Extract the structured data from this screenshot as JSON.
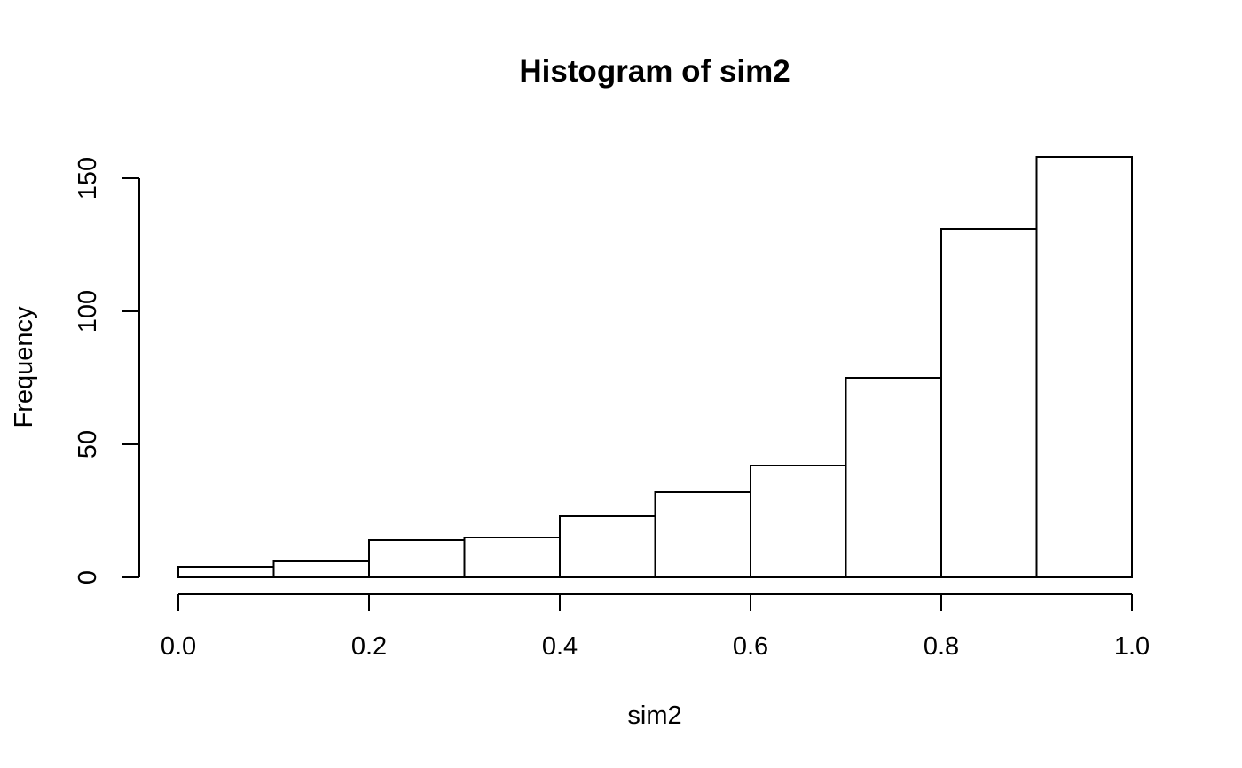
{
  "chart_data": {
    "type": "bar",
    "title": "Histogram of sim2",
    "xlabel": "sim2",
    "ylabel": "Frequency",
    "bins": [
      {
        "x0": 0.0,
        "x1": 0.1,
        "count": 4
      },
      {
        "x0": 0.1,
        "x1": 0.2,
        "count": 6
      },
      {
        "x0": 0.2,
        "x1": 0.3,
        "count": 14
      },
      {
        "x0": 0.3,
        "x1": 0.4,
        "count": 15
      },
      {
        "x0": 0.4,
        "x1": 0.5,
        "count": 23
      },
      {
        "x0": 0.5,
        "x1": 0.6,
        "count": 32
      },
      {
        "x0": 0.6,
        "x1": 0.7,
        "count": 42
      },
      {
        "x0": 0.7,
        "x1": 0.8,
        "count": 75
      },
      {
        "x0": 0.8,
        "x1": 0.9,
        "count": 131
      },
      {
        "x0": 0.9,
        "x1": 1.0,
        "count": 158
      }
    ],
    "xlim": [
      0.0,
      1.0
    ],
    "ylim": [
      0,
      150
    ],
    "xticks": [
      "0.0",
      "0.2",
      "0.4",
      "0.6",
      "0.8",
      "1.0"
    ],
    "yticks": [
      "0",
      "50",
      "100",
      "150"
    ],
    "grid": false,
    "bar_fill": "#ffffff",
    "bar_stroke": "#000000"
  }
}
